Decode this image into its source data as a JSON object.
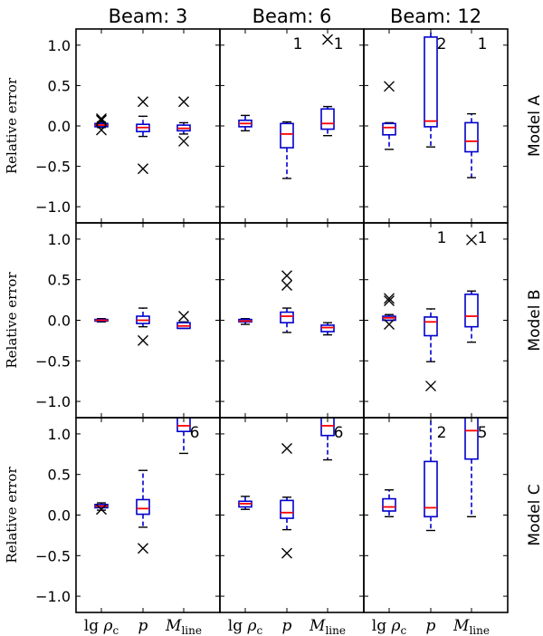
{
  "chart_data": {
    "type": "boxplot",
    "layout": "3x3 grid of box-and-whisker panels with shared axes",
    "columns": [
      "Beam: 3",
      "Beam: 6",
      "Beam: 12"
    ],
    "rows": [
      "Model A",
      "Model B",
      "Model C"
    ],
    "ylabel": "Relative error",
    "ylim": [
      -1.2,
      1.2
    ],
    "yticks": [
      {
        "value": 1.0,
        "label": "1.0"
      },
      {
        "value": 0.5,
        "label": "0.5"
      },
      {
        "value": 0.0,
        "label": "0.0"
      },
      {
        "value": -0.5,
        "label": "−0.5"
      },
      {
        "value": -1.0,
        "label": "−1.0"
      }
    ],
    "categories": [
      {
        "main": "lg ρ",
        "sub": "c"
      },
      {
        "main": "p",
        "sub": ""
      },
      {
        "main": "M",
        "sub": "line"
      }
    ],
    "box_color": "#0000cc",
    "median_color": "#ff0000",
    "panels": [
      {
        "row": "Model A",
        "col": "Beam: 3",
        "boxes": [
          {
            "q1": -0.01,
            "median": 0.01,
            "q3": 0.03,
            "wlo": -0.02,
            "whi": 0.05,
            "fliers": [
              0.09,
              0.07,
              -0.05
            ]
          },
          {
            "q1": -0.07,
            "median": -0.02,
            "q3": 0.02,
            "wlo": -0.13,
            "whi": 0.12,
            "fliers": [
              0.3,
              -0.53
            ]
          },
          {
            "q1": -0.06,
            "median": -0.03,
            "q3": 0.01,
            "wlo": -0.1,
            "whi": 0.04,
            "fliers": [
              0.3,
              -0.19
            ]
          }
        ],
        "outside": []
      },
      {
        "row": "Model A",
        "col": "Beam: 6",
        "boxes": [
          {
            "q1": -0.01,
            "median": 0.03,
            "q3": 0.07,
            "wlo": -0.06,
            "whi": 0.13,
            "fliers": []
          },
          {
            "q1": -0.27,
            "median": -0.1,
            "q3": 0.03,
            "wlo": -0.65,
            "whi": 0.05,
            "fliers": []
          },
          {
            "q1": -0.04,
            "median": 0.03,
            "q3": 0.21,
            "wlo": -0.12,
            "whi": 0.24,
            "fliers": [
              1.07
            ]
          }
        ],
        "outside": [
          {
            "cat": 1,
            "count": "1"
          },
          {
            "cat": 2,
            "count": "1"
          }
        ]
      },
      {
        "row": "Model A",
        "col": "Beam: 12",
        "boxes": [
          {
            "q1": -0.11,
            "median": -0.02,
            "q3": 0.03,
            "wlo": -0.29,
            "whi": 0.04,
            "fliers": [
              0.49
            ]
          },
          {
            "q1": -0.01,
            "median": 0.06,
            "q3": 1.1,
            "wlo": -0.26,
            "whi": 1.25,
            "fliers": []
          },
          {
            "q1": -0.32,
            "median": -0.19,
            "q3": 0.04,
            "wlo": -0.64,
            "whi": 0.15,
            "fliers": []
          }
        ],
        "outside": [
          {
            "cat": 1,
            "count": "2"
          },
          {
            "cat": 2,
            "count": "1"
          }
        ]
      },
      {
        "row": "Model B",
        "col": "Beam: 3",
        "boxes": [
          {
            "q1": -0.01,
            "median": 0.0,
            "q3": 0.01,
            "wlo": -0.02,
            "whi": 0.02,
            "fliers": []
          },
          {
            "q1": -0.04,
            "median": 0.0,
            "q3": 0.05,
            "wlo": -0.08,
            "whi": 0.15,
            "fliers": [
              -0.25
            ]
          },
          {
            "q1": -0.1,
            "median": -0.07,
            "q3": -0.03,
            "wlo": -0.1,
            "whi": -0.02,
            "fliers": [
              0.05
            ]
          }
        ],
        "outside": []
      },
      {
        "row": "Model B",
        "col": "Beam: 6",
        "boxes": [
          {
            "q1": -0.02,
            "median": -0.01,
            "q3": 0.01,
            "wlo": -0.05,
            "whi": 0.02,
            "fliers": []
          },
          {
            "q1": -0.03,
            "median": 0.05,
            "q3": 0.1,
            "wlo": -0.15,
            "whi": 0.15,
            "fliers": [
              0.55,
              0.43
            ]
          },
          {
            "q1": -0.14,
            "median": -0.09,
            "q3": -0.06,
            "wlo": -0.18,
            "whi": -0.03,
            "fliers": []
          }
        ],
        "outside": []
      },
      {
        "row": "Model B",
        "col": "Beam: 12",
        "boxes": [
          {
            "q1": 0.0,
            "median": 0.03,
            "q3": 0.05,
            "wlo": 0.0,
            "whi": 0.07,
            "fliers": [
              0.27,
              0.24,
              -0.05
            ]
          },
          {
            "q1": -0.19,
            "median": -0.02,
            "q3": 0.04,
            "wlo": -0.51,
            "whi": 0.14,
            "fliers": [
              -0.81
            ]
          },
          {
            "q1": -0.08,
            "median": 0.05,
            "q3": 0.32,
            "wlo": -0.27,
            "whi": 0.36,
            "fliers": [
              0.99
            ]
          }
        ],
        "outside": [
          {
            "cat": 1,
            "count": "1"
          },
          {
            "cat": 2,
            "count": "1"
          }
        ]
      },
      {
        "row": "Model C",
        "col": "Beam: 3",
        "boxes": [
          {
            "q1": 0.09,
            "median": 0.11,
            "q3": 0.13,
            "wlo": 0.06,
            "whi": 0.15,
            "fliers": [
              0.07
            ]
          },
          {
            "q1": 0.01,
            "median": 0.08,
            "q3": 0.19,
            "wlo": -0.15,
            "whi": 0.55,
            "fliers": [
              -0.41
            ]
          },
          {
            "q1": 1.03,
            "median": 1.1,
            "q3": 1.35,
            "wlo": 0.76,
            "whi": 1.5,
            "fliers": []
          }
        ],
        "outside": [
          {
            "cat": 2,
            "count": "6"
          }
        ]
      },
      {
        "row": "Model C",
        "col": "Beam: 6",
        "boxes": [
          {
            "q1": 0.1,
            "median": 0.14,
            "q3": 0.17,
            "wlo": 0.07,
            "whi": 0.23,
            "fliers": []
          },
          {
            "q1": -0.04,
            "median": 0.03,
            "q3": 0.18,
            "wlo": -0.18,
            "whi": 0.22,
            "fliers": [
              0.82,
              -0.47
            ]
          },
          {
            "q1": 0.98,
            "median": 1.1,
            "q3": 1.35,
            "wlo": 0.68,
            "whi": 1.5,
            "fliers": []
          }
        ],
        "outside": [
          {
            "cat": 2,
            "count": "6"
          }
        ]
      },
      {
        "row": "Model C",
        "col": "Beam: 12",
        "boxes": [
          {
            "q1": 0.05,
            "median": 0.1,
            "q3": 0.2,
            "wlo": -0.02,
            "whi": 0.31,
            "fliers": []
          },
          {
            "q1": -0.02,
            "median": 0.09,
            "q3": 0.66,
            "wlo": -0.19,
            "whi": 1.2,
            "fliers": []
          },
          {
            "q1": 0.69,
            "median": 1.04,
            "q3": 1.3,
            "wlo": -0.02,
            "whi": 1.5,
            "fliers": []
          }
        ],
        "outside": [
          {
            "cat": 1,
            "count": "2"
          },
          {
            "cat": 2,
            "count": "5"
          }
        ]
      }
    ]
  }
}
